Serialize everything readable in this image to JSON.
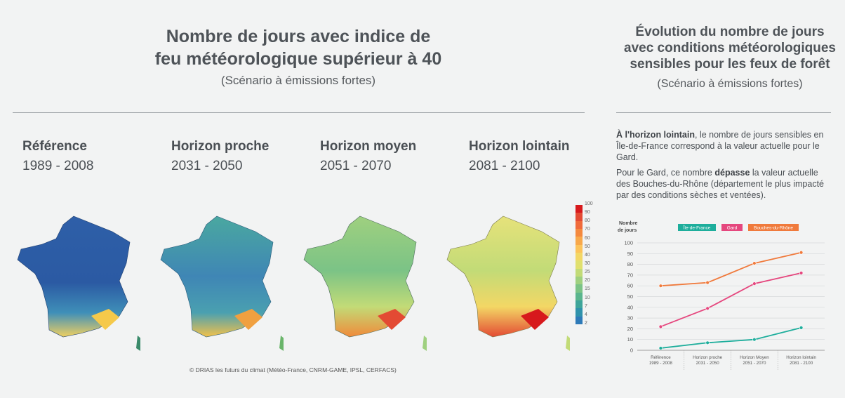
{
  "left": {
    "title_line1": "Nombre de jours avec indice de",
    "title_line2": "feu météorologique supérieur à 40",
    "subtitle": "(Scénario à émissions fortes)",
    "periods": [
      {
        "label": "Référence",
        "years": "1989 - 2008"
      },
      {
        "label": "Horizon proche",
        "years": "2031 - 2050"
      },
      {
        "label": "Horizon moyen",
        "years": "2051 - 2070"
      },
      {
        "label": "Horizon lointain",
        "years": "2081 - 2100"
      }
    ],
    "colorbar": {
      "ticks": [
        "100",
        "90",
        "80",
        "70",
        "60",
        "50",
        "40",
        "30",
        "25",
        "20",
        "15",
        "10",
        "7",
        "4",
        "2"
      ],
      "colors": [
        "#d7191c",
        "#e34a33",
        "#f06a3a",
        "#f4893e",
        "#f8a84a",
        "#fcc35a",
        "#f3d765",
        "#e0e06e",
        "#c2db77",
        "#9fd07f",
        "#7bc386",
        "#5ab58d",
        "#3ea59a",
        "#2f92ab",
        "#2e7ab8"
      ]
    },
    "credit": "© DRIAS les futurs du climat (Météo-France, CNRM-GAME, IPSL, CERFACS)"
  },
  "right": {
    "title_line1": "Évolution du nombre de jours",
    "title_line2": "avec conditions météorologiques",
    "title_line3": "sensibles pour les feux de forêt",
    "subtitle": "(Scénario à émissions fortes)",
    "p1_bold": "À l'horizon lointain",
    "p1_rest": ", le nombre de jours sensibles en Île-de-France correspond à la valeur actuelle pour le Gard.",
    "p2_start": "Pour le Gard, ce nombre ",
    "p2_bold": "dépasse",
    "p2_rest": " la valeur actuelle des Bouches-du-Rhône (département le plus impacté par des conditions sèches et ventées)."
  },
  "chart_data": {
    "type": "line",
    "ylabel_line1": "Nombre",
    "ylabel_line2": "de jours",
    "categories": [
      [
        "Référence",
        "1989 - 2008"
      ],
      [
        "Horizon proche",
        "2031 - 2050"
      ],
      [
        "Horizon Moyen",
        "2051 - 2070"
      ],
      [
        "Horizon lointain",
        "2081 - 2100"
      ]
    ],
    "ylim": [
      0,
      100
    ],
    "yticks": [
      0,
      10,
      20,
      30,
      40,
      50,
      60,
      70,
      80,
      90,
      100
    ],
    "grid": true,
    "legend_position": "top",
    "series": [
      {
        "name": "Île-de-France",
        "color": "#1eae9c",
        "values": [
          2,
          7,
          10,
          21
        ]
      },
      {
        "name": "Gard",
        "color": "#e5477e",
        "values": [
          22,
          39,
          62,
          72
        ]
      },
      {
        "name": "Bouches-du-Rhône",
        "color": "#f07a3c",
        "values": [
          60,
          63,
          81,
          91
        ]
      }
    ]
  }
}
